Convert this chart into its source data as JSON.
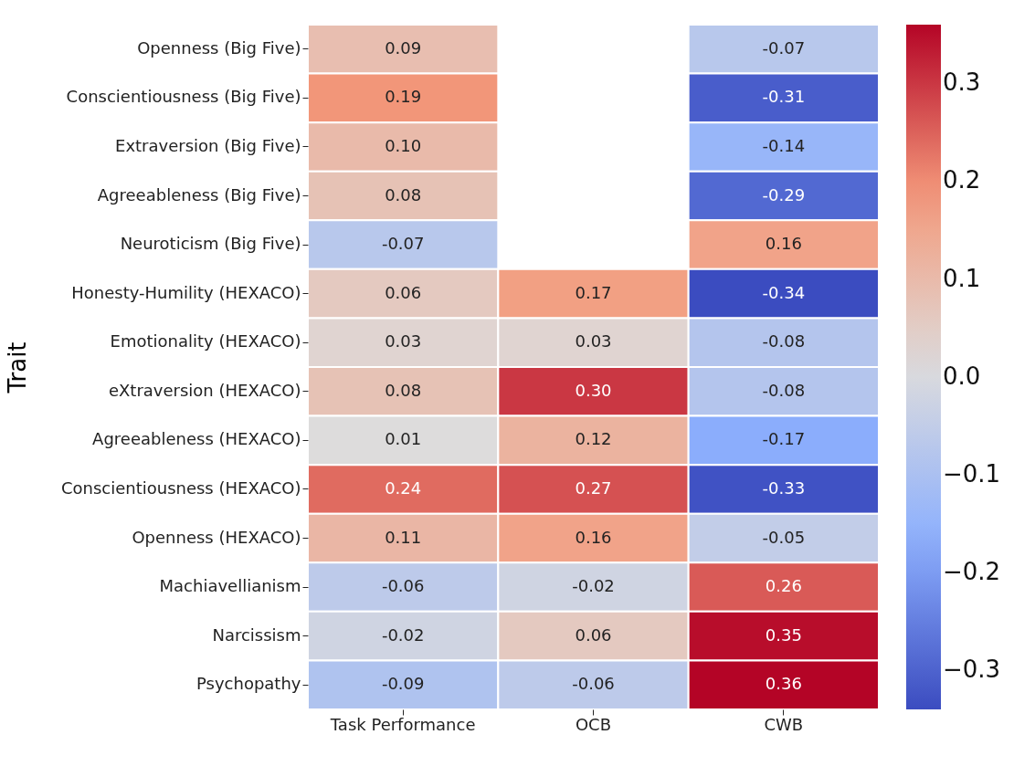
{
  "chart_data": {
    "type": "heatmap",
    "ylabel": "Trait",
    "categories": [
      "Task Performance",
      "OCB",
      "CWB"
    ],
    "y_categories": [
      "Openness (Big Five)",
      "Conscientiousness (Big Five)",
      "Extraversion (Big Five)",
      "Agreeableness (Big Five)",
      "Neuroticism (Big Five)",
      "Honesty-Humility (HEXACO)",
      "Emotionality (HEXACO)",
      "eXtraversion (HEXACO)",
      "Agreeableness (HEXACO)",
      "Conscientiousness (HEXACO)",
      "Openness (HEXACO)",
      "Machiavellianism",
      "Narcissism",
      "Psychopathy"
    ],
    "cells": [
      [
        0.09,
        null,
        -0.07
      ],
      [
        0.19,
        null,
        -0.31
      ],
      [
        0.1,
        null,
        -0.14
      ],
      [
        0.08,
        null,
        -0.29
      ],
      [
        -0.07,
        null,
        0.16
      ],
      [
        0.06,
        0.17,
        -0.34
      ],
      [
        0.03,
        0.03,
        -0.08
      ],
      [
        0.08,
        0.3,
        -0.08
      ],
      [
        0.01,
        0.12,
        -0.17
      ],
      [
        0.24,
        0.27,
        -0.33
      ],
      [
        0.11,
        0.16,
        -0.05
      ],
      [
        -0.06,
        -0.02,
        0.26
      ],
      [
        -0.02,
        0.06,
        0.35
      ],
      [
        -0.09,
        -0.06,
        0.36
      ]
    ],
    "cell_labels": [
      [
        "0.09",
        null,
        "-0.07"
      ],
      [
        "0.19",
        null,
        "-0.31"
      ],
      [
        "0.10",
        null,
        "-0.14"
      ],
      [
        "0.08",
        null,
        "-0.29"
      ],
      [
        "-0.07",
        null,
        "0.16"
      ],
      [
        "0.06",
        "0.17",
        "-0.34"
      ],
      [
        "0.03",
        "0.03",
        "-0.08"
      ],
      [
        "0.08",
        "0.30",
        "-0.08"
      ],
      [
        "0.01",
        "0.12",
        "-0.17"
      ],
      [
        "0.24",
        "0.27",
        "-0.33"
      ],
      [
        "0.11",
        "0.16",
        "-0.05"
      ],
      [
        "-0.06",
        "-0.02",
        "0.26"
      ],
      [
        "-0.02",
        "0.06",
        "0.35"
      ],
      [
        "-0.09",
        "-0.06",
        "0.36"
      ]
    ],
    "clim": [
      -0.34,
      0.36
    ],
    "cticks": [
      {
        "value": -0.3,
        "label": "−0.3"
      },
      {
        "value": -0.2,
        "label": "−0.2"
      },
      {
        "value": -0.1,
        "label": "−0.1"
      },
      {
        "value": 0,
        "label": "0.0"
      },
      0.1,
      0.2,
      0.3
    ]
  }
}
